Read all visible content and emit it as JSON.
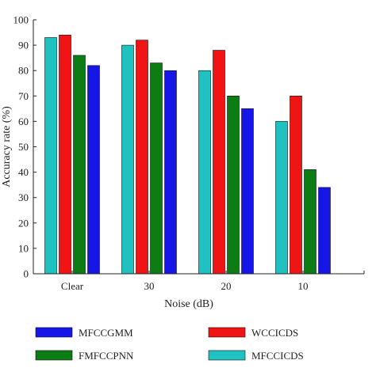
{
  "colors": {
    "MFCCICDS": "#1fc1c1",
    "WCCICDS": "#f01414",
    "FMFCCPNN": "#0b7d14",
    "MFCCGMM": "#1616e6",
    "axis": "#222222"
  },
  "chart_data": {
    "type": "bar",
    "title": "",
    "xlabel": "Noise (dB)",
    "ylabel": "Accuracy rate (%)",
    "ylim": [
      0,
      100
    ],
    "yticks": [
      0,
      10,
      20,
      30,
      40,
      50,
      60,
      70,
      80,
      90,
      100
    ],
    "categories": [
      "Clear",
      "30",
      "20",
      "10"
    ],
    "grid": false,
    "legend_position": "bottom",
    "series": [
      {
        "name": "MFCCICDS",
        "values": [
          93,
          90,
          80,
          60
        ]
      },
      {
        "name": "WCCICDS",
        "values": [
          94,
          92,
          88,
          70
        ]
      },
      {
        "name": "FMFCCPNN",
        "values": [
          86,
          83,
          70,
          41
        ]
      },
      {
        "name": "MFCCGMM",
        "values": [
          82,
          80,
          65,
          34
        ]
      }
    ],
    "legend_order": [
      "MFCCGMM",
      "WCCICDS",
      "FMFCCPNN",
      "MFCCICDS"
    ]
  }
}
